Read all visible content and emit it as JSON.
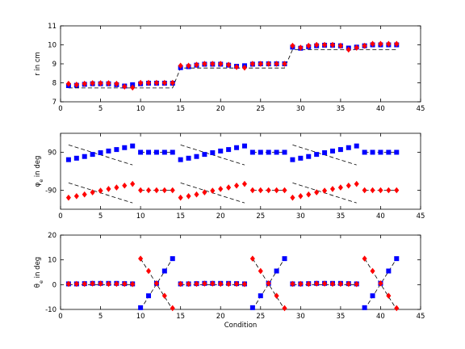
{
  "chart_data": [
    {
      "type": "scatter",
      "title": "",
      "xlabel": "",
      "ylabel": "r in cm",
      "xlim": [
        0,
        45
      ],
      "ylim": [
        7,
        11
      ],
      "xticks": [
        0,
        5,
        10,
        15,
        20,
        25,
        30,
        35,
        40,
        45
      ],
      "yticks": [
        7,
        8,
        9,
        10,
        11
      ],
      "ytick_labels": [
        "7",
        "8",
        "9",
        "10",
        "11"
      ],
      "grid": false,
      "series": [
        {
          "marker": "dashed-line",
          "color": "#000000",
          "x": [
            1,
            2,
            3,
            4,
            5,
            6,
            7,
            8,
            9,
            10,
            11,
            12,
            13,
            14,
            15,
            16,
            17,
            18,
            19,
            20,
            21,
            22,
            23,
            24,
            25,
            26,
            27,
            28,
            29,
            30,
            31,
            32,
            33,
            34,
            35,
            36,
            37,
            38,
            39,
            40,
            41,
            42
          ],
          "y": [
            7.73,
            7.73,
            7.73,
            7.73,
            7.73,
            7.73,
            7.73,
            7.73,
            7.73,
            7.73,
            7.73,
            7.73,
            7.73,
            7.73,
            8.78,
            8.78,
            8.78,
            8.78,
            8.78,
            8.78,
            8.78,
            8.78,
            8.78,
            8.78,
            8.78,
            8.78,
            8.78,
            8.78,
            9.75,
            9.75,
            9.75,
            9.75,
            9.75,
            9.75,
            9.75,
            9.75,
            9.75,
            9.75,
            9.75,
            9.75,
            9.75,
            9.75
          ]
        },
        {
          "marker": "square",
          "color": "#0000ff",
          "x": [
            1,
            2,
            3,
            4,
            5,
            6,
            7,
            8,
            9,
            10,
            11,
            12,
            13,
            14,
            15,
            16,
            17,
            18,
            19,
            20,
            21,
            22,
            23,
            24,
            25,
            26,
            27,
            28,
            29,
            30,
            31,
            32,
            33,
            34,
            35,
            36,
            37,
            38,
            39,
            40,
            41,
            42
          ],
          "y": [
            7.85,
            7.87,
            7.92,
            7.95,
            7.95,
            7.95,
            7.9,
            7.83,
            7.9,
            7.95,
            7.98,
            7.98,
            7.98,
            7.98,
            8.8,
            8.85,
            8.93,
            8.98,
            8.98,
            8.98,
            8.93,
            8.87,
            8.9,
            8.98,
            9.0,
            9.0,
            9.0,
            9.0,
            9.88,
            9.82,
            9.9,
            9.95,
            9.98,
            9.98,
            9.95,
            9.83,
            9.88,
            9.95,
            10.0,
            10.0,
            10.0,
            10.0
          ]
        },
        {
          "marker": "diamond",
          "color": "#ff0000",
          "x": [
            1,
            2,
            3,
            4,
            5,
            6,
            7,
            8,
            9,
            10,
            11,
            12,
            13,
            14,
            15,
            16,
            17,
            18,
            19,
            20,
            21,
            22,
            23,
            24,
            25,
            26,
            27,
            28,
            29,
            30,
            31,
            32,
            33,
            34,
            35,
            36,
            37,
            38,
            39,
            40,
            41,
            42
          ],
          "y": [
            7.95,
            7.9,
            7.95,
            7.98,
            7.98,
            7.98,
            7.95,
            7.8,
            7.75,
            8.0,
            8.0,
            8.0,
            8.0,
            8.0,
            8.9,
            8.9,
            8.95,
            9.0,
            9.0,
            9.0,
            8.95,
            8.83,
            8.8,
            9.0,
            9.0,
            9.0,
            9.0,
            9.0,
            9.95,
            9.85,
            9.95,
            10.0,
            10.0,
            10.0,
            9.95,
            9.75,
            9.85,
            9.95,
            10.05,
            10.05,
            10.05,
            10.05
          ]
        }
      ]
    },
    {
      "type": "scatter",
      "title": "",
      "xlabel": "",
      "ylabel": "φe in deg",
      "ylabel_main": "φ",
      "ylabel_sub": "e",
      "ylabel_rest": " in deg",
      "xlim": [
        0,
        45
      ],
      "ylim": [
        -180,
        180
      ],
      "xticks": [
        0,
        5,
        10,
        15,
        20,
        25,
        30,
        35,
        40,
        45
      ],
      "yticks": [
        -90,
        90
      ],
      "ytick_labels": [
        "-90",
        "90"
      ],
      "grid": false,
      "series": [
        {
          "marker": "dashed-line",
          "color": "#000000",
          "segments": [
            {
              "x": [
                1,
                9
              ],
              "y": [
                125,
                30
              ]
            },
            {
              "x": [
                10,
                14
              ],
              "y": [
                90,
                90
              ]
            },
            {
              "x": [
                15,
                23
              ],
              "y": [
                125,
                30
              ]
            },
            {
              "x": [
                24,
                28
              ],
              "y": [
                90,
                90
              ]
            },
            {
              "x": [
                29,
                37
              ],
              "y": [
                125,
                30
              ]
            },
            {
              "x": [
                38,
                42
              ],
              "y": [
                90,
                90
              ]
            },
            {
              "x": [
                1,
                9
              ],
              "y": [
                -55,
                -150
              ]
            },
            {
              "x": [
                10,
                14
              ],
              "y": [
                -90,
                -90
              ]
            },
            {
              "x": [
                15,
                23
              ],
              "y": [
                -55,
                -150
              ]
            },
            {
              "x": [
                24,
                28
              ],
              "y": [
                -90,
                -90
              ]
            },
            {
              "x": [
                29,
                37
              ],
              "y": [
                -55,
                -150
              ]
            },
            {
              "x": [
                38,
                42
              ],
              "y": [
                -90,
                -90
              ]
            }
          ]
        },
        {
          "marker": "square",
          "color": "#0000ff",
          "x": [
            1,
            2,
            3,
            4,
            5,
            6,
            7,
            8,
            9,
            10,
            11,
            12,
            13,
            14,
            15,
            16,
            17,
            18,
            19,
            20,
            21,
            22,
            23,
            24,
            25,
            26,
            27,
            28,
            29,
            30,
            31,
            32,
            33,
            34,
            35,
            36,
            37,
            38,
            39,
            40,
            41,
            42
          ],
          "y": [
            55,
            62,
            70,
            80,
            88,
            96,
            103,
            112,
            120,
            90,
            90,
            90,
            90,
            90,
            55,
            62,
            70,
            80,
            88,
            96,
            103,
            112,
            120,
            90,
            90,
            90,
            90,
            90,
            55,
            62,
            70,
            80,
            88,
            96,
            103,
            112,
            120,
            90,
            90,
            90,
            90,
            90
          ]
        },
        {
          "marker": "diamond",
          "color": "#ff0000",
          "x": [
            1,
            2,
            3,
            4,
            5,
            6,
            7,
            8,
            9,
            10,
            11,
            12,
            13,
            14,
            15,
            16,
            17,
            18,
            19,
            20,
            21,
            22,
            23,
            24,
            25,
            26,
            27,
            28,
            29,
            30,
            31,
            32,
            33,
            34,
            35,
            36,
            37,
            38,
            39,
            40,
            41,
            42
          ],
          "y": [
            -125,
            -118,
            -110,
            -100,
            -92,
            -84,
            -77,
            -68,
            -60,
            -90,
            -90,
            -90,
            -90,
            -90,
            -125,
            -118,
            -110,
            -100,
            -92,
            -84,
            -77,
            -68,
            -60,
            -90,
            -90,
            -90,
            -90,
            -90,
            -125,
            -118,
            -110,
            -100,
            -92,
            -84,
            -77,
            -68,
            -60,
            -90,
            -90,
            -90,
            -90,
            -90
          ]
        }
      ]
    },
    {
      "type": "scatter",
      "title": "",
      "xlabel": "Condition",
      "ylabel": "θe in deg",
      "ylabel_main": "θ",
      "ylabel_sub": "e",
      "ylabel_rest": " in deg",
      "xlim": [
        0,
        45
      ],
      "ylim": [
        -10,
        20
      ],
      "xticks": [
        0,
        5,
        10,
        15,
        20,
        25,
        30,
        35,
        40,
        45
      ],
      "yticks": [
        -10,
        0,
        10,
        20
      ],
      "ytick_labels": [
        "-10",
        "0",
        "10",
        "20"
      ],
      "grid": false,
      "series": [
        {
          "marker": "dashed-line",
          "color": "#000000",
          "segments": [
            {
              "x": [
                1,
                9
              ],
              "y": [
                0,
                0
              ]
            },
            {
              "x": [
                15,
                23
              ],
              "y": [
                0,
                0
              ]
            },
            {
              "x": [
                29,
                37
              ],
              "y": [
                0,
                0
              ]
            },
            {
              "x": [
                10,
                14
              ],
              "y": [
                10.5,
                -10
              ]
            },
            {
              "x": [
                10,
                14
              ],
              "y": [
                -10,
                10.5
              ]
            },
            {
              "x": [
                24,
                28
              ],
              "y": [
                10.5,
                -10
              ]
            },
            {
              "x": [
                24,
                28
              ],
              "y": [
                -10,
                10.5
              ]
            },
            {
              "x": [
                38,
                42
              ],
              "y": [
                10.5,
                -10
              ]
            },
            {
              "x": [
                38,
                42
              ],
              "y": [
                -10,
                10.5
              ]
            }
          ]
        },
        {
          "marker": "square",
          "color": "#0000ff",
          "x": [
            1,
            2,
            3,
            4,
            5,
            6,
            7,
            8,
            9,
            10,
            11,
            12,
            13,
            14,
            15,
            16,
            17,
            18,
            19,
            20,
            21,
            22,
            23,
            24,
            25,
            26,
            27,
            28,
            29,
            30,
            31,
            32,
            33,
            34,
            35,
            36,
            37,
            38,
            39,
            40,
            41,
            42
          ],
          "y": [
            0.3,
            0.3,
            0.4,
            0.5,
            0.5,
            0.5,
            0.5,
            0.4,
            0.3,
            -9.3,
            -4.5,
            0.5,
            5.5,
            10.5,
            0.3,
            0.3,
            0.4,
            0.5,
            0.5,
            0.5,
            0.5,
            0.4,
            0.3,
            -9.3,
            -4.5,
            0.5,
            5.5,
            10.5,
            0.3,
            0.3,
            0.4,
            0.5,
            0.5,
            0.5,
            0.5,
            0.4,
            0.3,
            -9.3,
            -4.5,
            0.5,
            5.5,
            10.5
          ]
        },
        {
          "marker": "diamond",
          "color": "#ff0000",
          "x": [
            1,
            2,
            3,
            4,
            5,
            6,
            7,
            8,
            9,
            10,
            11,
            12,
            13,
            14,
            15,
            16,
            17,
            18,
            19,
            20,
            21,
            22,
            23,
            24,
            25,
            26,
            27,
            28,
            29,
            30,
            31,
            32,
            33,
            34,
            35,
            36,
            37,
            38,
            39,
            40,
            41,
            42
          ],
          "y": [
            0.3,
            0.3,
            0.3,
            0.4,
            0.4,
            0.3,
            0.3,
            0.3,
            0.2,
            10.5,
            5.5,
            0.5,
            -4.5,
            -9.5,
            0.3,
            0.3,
            0.3,
            0.4,
            0.4,
            0.3,
            0.3,
            0.3,
            0.2,
            10.5,
            5.5,
            0.5,
            -4.5,
            -9.5,
            0.3,
            0.3,
            0.3,
            0.4,
            0.4,
            0.3,
            0.3,
            0.3,
            0.2,
            10.5,
            5.5,
            0.5,
            -4.5,
            -9.5
          ]
        }
      ]
    }
  ]
}
